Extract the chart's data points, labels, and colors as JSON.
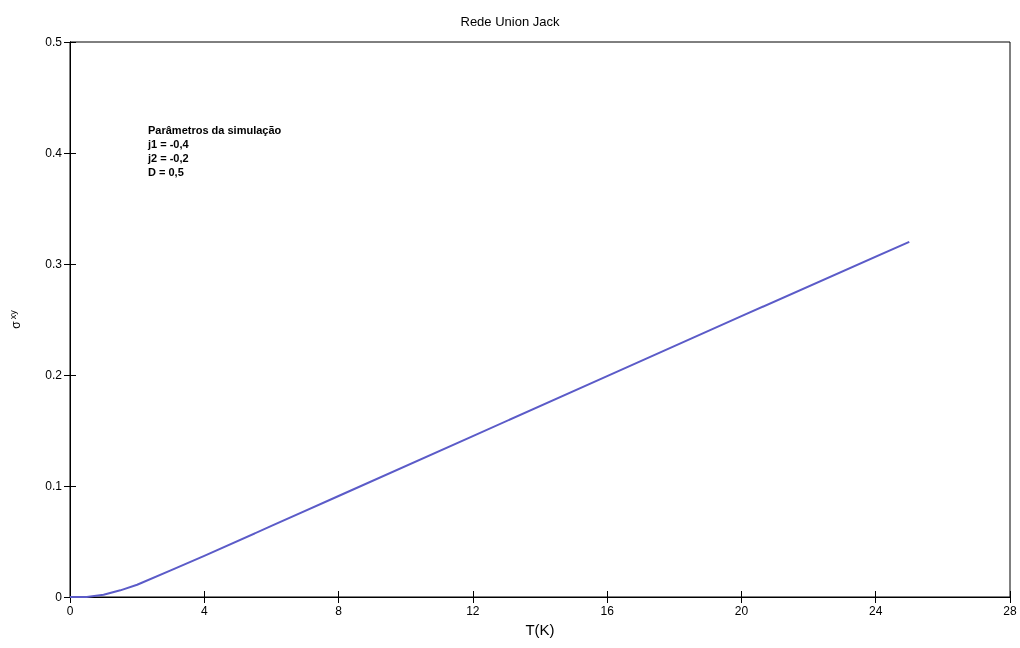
{
  "chart_data": {
    "type": "line",
    "title": "Rede Union Jack",
    "xlabel": "T(K)",
    "ylabel": "σ$^{xy}$",
    "annotations": [
      "Parâmetros da simulação",
      "j1 = -0,4",
      "j2 = -0,2",
      "D = 0,5"
    ],
    "series": [
      {
        "color": "#5b5bc8",
        "x": [
          0,
          0.5,
          1,
          1.5,
          2,
          3,
          4,
          6,
          8,
          12,
          16,
          20,
          25
        ],
        "values": [
          0,
          0,
          0.002,
          0.006,
          0.011,
          0.024,
          0.037,
          0.064,
          0.091,
          0.145,
          0.199,
          0.253,
          0.32
        ]
      }
    ],
    "xlim": [
      0,
      28
    ],
    "xticks": [
      0,
      4,
      8,
      12,
      16,
      20,
      24,
      28
    ],
    "ylim": [
      0,
      0.5
    ],
    "yticks": [
      0,
      0.1,
      0.2,
      0.3,
      0.4,
      0.5
    ],
    "grid": false,
    "marker": "none",
    "line_style": "solid"
  }
}
